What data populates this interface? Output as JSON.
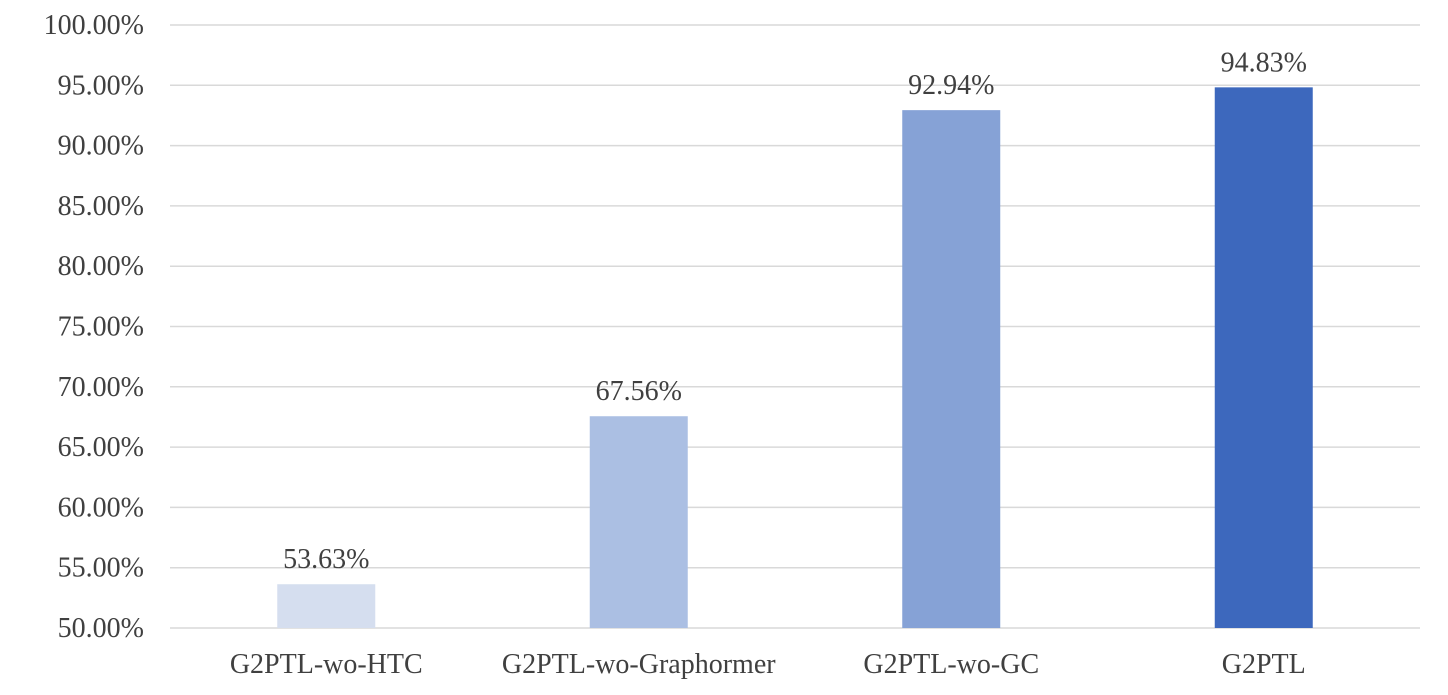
{
  "chart_data": {
    "type": "bar",
    "categories": [
      "G2PTL-wo-HTC",
      "G2PTL-wo-Graphormer",
      "G2PTL-wo-GC",
      "G2PTL"
    ],
    "values": [
      53.63,
      67.56,
      92.94,
      94.83
    ],
    "data_labels": [
      "53.63%",
      "67.56%",
      "92.94%",
      "94.83%"
    ],
    "bar_colors": [
      "#d5deef",
      "#abbfe3",
      "#86a2d6",
      "#3d68bd"
    ],
    "ylim": [
      50,
      100
    ],
    "yticks": [
      50,
      55,
      60,
      65,
      70,
      75,
      80,
      85,
      90,
      95,
      100
    ],
    "ytick_labels": [
      "50.00%",
      "55.00%",
      "60.00%",
      "65.00%",
      "70.00%",
      "75.00%",
      "80.00%",
      "85.00%",
      "90.00%",
      "95.00%",
      "100.00%"
    ],
    "grid": true,
    "grid_color": "#d9d9d9",
    "legend": "none",
    "title": "",
    "xlabel": "",
    "ylabel": ""
  }
}
